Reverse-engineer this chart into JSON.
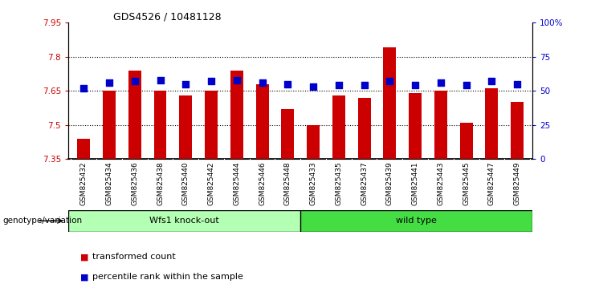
{
  "title": "GDS4526 / 10481128",
  "categories": [
    "GSM825432",
    "GSM825434",
    "GSM825436",
    "GSM825438",
    "GSM825440",
    "GSM825442",
    "GSM825444",
    "GSM825446",
    "GSM825448",
    "GSM825433",
    "GSM825435",
    "GSM825437",
    "GSM825439",
    "GSM825441",
    "GSM825443",
    "GSM825445",
    "GSM825447",
    "GSM825449"
  ],
  "transformed_count": [
    7.44,
    7.65,
    7.74,
    7.65,
    7.63,
    7.65,
    7.74,
    7.68,
    7.57,
    7.5,
    7.63,
    7.62,
    7.84,
    7.64,
    7.65,
    7.51,
    7.66,
    7.6
  ],
  "percentile_rank": [
    52,
    56,
    57,
    58,
    55,
    57,
    58,
    56,
    55,
    53,
    54,
    54,
    57,
    54,
    56,
    54,
    57,
    55
  ],
  "groups": [
    "Wfs1 knock-out",
    "wild type"
  ],
  "group_sizes": [
    9,
    9
  ],
  "group_colors": [
    "#b3ffb3",
    "#44dd44"
  ],
  "bar_color": "#CC0000",
  "dot_color": "#0000CC",
  "ylim_left": [
    7.35,
    7.95
  ],
  "ylim_right": [
    0,
    100
  ],
  "yticks_left": [
    7.35,
    7.5,
    7.65,
    7.8,
    7.95
  ],
  "yticks_right": [
    0,
    25,
    50,
    75,
    100
  ],
  "ytick_labels_left": [
    "7.35",
    "7.5",
    "7.65",
    "7.8",
    "7.95"
  ],
  "ytick_labels_right": [
    "0",
    "25",
    "50",
    "75",
    "100%"
  ],
  "hlines": [
    7.5,
    7.65,
    7.8
  ],
  "legend_items": [
    "transformed count",
    "percentile rank within the sample"
  ],
  "legend_colors": [
    "#CC0000",
    "#0000CC"
  ],
  "xlabel_left": "genotype/variation",
  "bar_width": 0.5,
  "dot_size": 30,
  "background_color": "#ffffff",
  "tick_color_left": "#CC0000",
  "tick_color_right": "#0000CC",
  "xticklabel_bg": "#d8d8d8",
  "title_fontsize": 9,
  "axis_fontsize": 7.5,
  "legend_fontsize": 8
}
